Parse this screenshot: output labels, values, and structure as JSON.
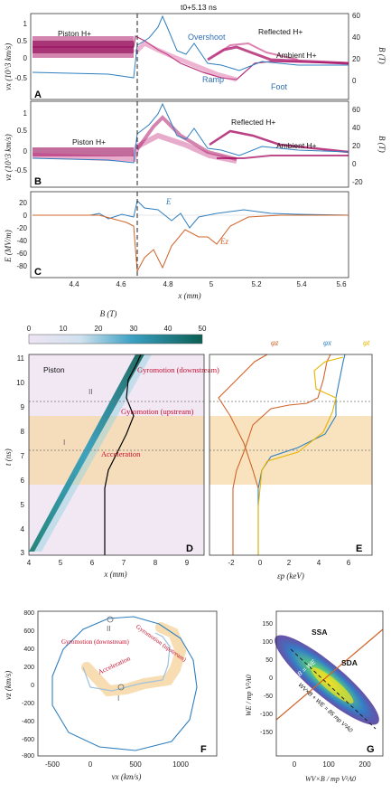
{
  "figure": {
    "top_title": "t0+5.13 ns",
    "panels": {
      "A": {
        "label": "A",
        "ylabel": "vx (10^3 km/s)",
        "ylabel_right": "B (T)",
        "yticks_left": [
          "1",
          "0.5",
          "0",
          "-0.5"
        ],
        "yticks_right": [
          "60",
          "40",
          "20",
          "0"
        ],
        "annotations": [
          "Piston H+",
          "Reflected H+",
          "Overshoot",
          "Ambient H+",
          "Ramp",
          "Foot"
        ]
      },
      "B": {
        "label": "B",
        "ylabel": "vz (10^3 km/s)",
        "ylabel_right": "B (T)",
        "yticks_left": [
          "1",
          "0.5",
          "0",
          "-0.5"
        ],
        "yticks_right": [
          "60",
          "40",
          "20",
          "0",
          "-20"
        ],
        "annotations": [
          "Piston H+",
          "Reflected H+",
          "Ambient H+"
        ]
      },
      "C": {
        "label": "C",
        "ylabel": "E (MV/m)",
        "yticks": [
          "20",
          "0",
          "-20",
          "-40",
          "-60",
          "-80"
        ],
        "xticks": [
          "4.4",
          "4.6",
          "4.8",
          "5",
          "5.2",
          "5.4",
          "5.6"
        ],
        "xlabel": "x (mm)",
        "series_labels": [
          "E",
          "Ez"
        ]
      },
      "D": {
        "label": "D",
        "colorbar_label": "B (T)",
        "colorbar_ticks": [
          "0",
          "10",
          "20",
          "30",
          "40",
          "50"
        ],
        "ylabel": "t (ns)",
        "xlabel": "x (mm)",
        "yticks": [
          "11",
          "10",
          "9",
          "8",
          "7",
          "6",
          "5",
          "4",
          "3"
        ],
        "xticks": [
          "4",
          "5",
          "6",
          "7",
          "8",
          "9"
        ],
        "annotations": [
          "Piston",
          "II",
          "I",
          "Gyromotion (downstream)",
          "Gyromotion (upstream)",
          "Acceleration"
        ]
      },
      "E": {
        "label": "E",
        "xlabel": "εp (keV)",
        "xticks": [
          "-2",
          "0",
          "2",
          "4",
          "6"
        ],
        "series_labels": [
          "φz",
          "φx",
          "φt"
        ]
      },
      "F": {
        "label": "F",
        "ylabel": "vz (km/s)",
        "xlabel": "vx (km/s)",
        "yticks": [
          "800",
          "600",
          "400",
          "200",
          "0",
          "-200",
          "-400",
          "-600",
          "-800"
        ],
        "xticks": [
          "-500",
          "0",
          "500",
          "1000"
        ],
        "annotations": [
          "II",
          "I",
          "Gyromotion (downstream)",
          "Gyromotion (upstream)",
          "Acceleration"
        ]
      },
      "G": {
        "label": "G",
        "ylabel": "WE / mp V²A0",
        "xlabel": "WV×B / mp V²A0",
        "yticks": [
          "150",
          "100",
          "50",
          "0",
          "-50",
          "-100",
          "-150"
        ],
        "xticks": [
          "0",
          "100",
          "200"
        ],
        "annotations": [
          "SSA",
          "SDA",
          "WV×B = WE",
          "WV×B + WE = 85 mp V²A0"
        ]
      }
    },
    "colors": {
      "blue": "#2f7fbf",
      "orange": "#d0642a",
      "yellow": "#e8b400",
      "magenta": "#a3005a",
      "teal": "#0f7a6a",
      "red_text": "#c8102e",
      "highlight": "#f6d9a8"
    }
  }
}
